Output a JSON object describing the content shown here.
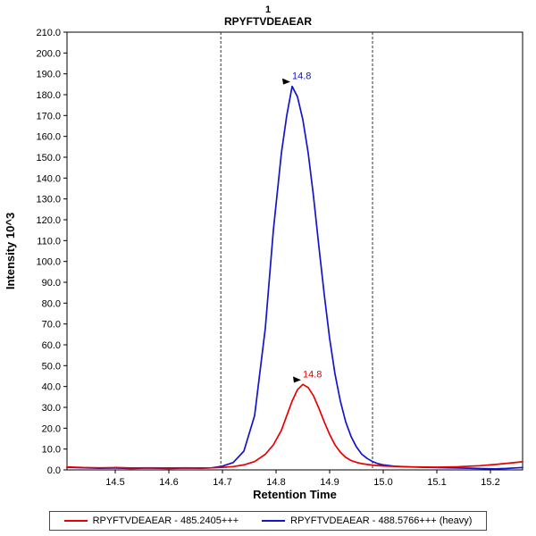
{
  "header": {
    "title": "1",
    "subtitle": "RPYFTVDEAEAR"
  },
  "chart_data": {
    "type": "line",
    "title": "1",
    "subtitle": "RPYFTVDEAEAR",
    "xlabel": "Retention Time",
    "ylabel": "Intensity 10^3",
    "xlim": [
      14.41,
      15.26
    ],
    "ylim": [
      0,
      210
    ],
    "xticks": [
      14.5,
      14.6,
      14.7,
      14.8,
      14.9,
      15.0,
      15.1,
      15.2
    ],
    "ytick_step": 10,
    "grid": false,
    "legend_position": "bottom",
    "boundaries": [
      14.697,
      14.98
    ],
    "series": [
      {
        "name": "RPYFTVDEAEAR - 485.2405+++",
        "color": "#e60000",
        "peak_annotation": {
          "label": "14.8",
          "x": 14.85,
          "y": 41
        },
        "points": [
          [
            14.41,
            1.4
          ],
          [
            14.44,
            1.1
          ],
          [
            14.47,
            1.0
          ],
          [
            14.5,
            1.1
          ],
          [
            14.53,
            0.9
          ],
          [
            14.56,
            1.0
          ],
          [
            14.6,
            0.9
          ],
          [
            14.63,
            1.0
          ],
          [
            14.66,
            0.9
          ],
          [
            14.68,
            1.0
          ],
          [
            14.7,
            1.2
          ],
          [
            14.72,
            1.6
          ],
          [
            14.74,
            2.4
          ],
          [
            14.76,
            4.0
          ],
          [
            14.78,
            7.5
          ],
          [
            14.795,
            12
          ],
          [
            14.81,
            19
          ],
          [
            14.82,
            26
          ],
          [
            14.83,
            33
          ],
          [
            14.84,
            38.5
          ],
          [
            14.85,
            41
          ],
          [
            14.86,
            39.5
          ],
          [
            14.87,
            35.5
          ],
          [
            14.88,
            29.5
          ],
          [
            14.89,
            23
          ],
          [
            14.9,
            17
          ],
          [
            14.91,
            12
          ],
          [
            14.92,
            8.5
          ],
          [
            14.93,
            6.0
          ],
          [
            14.94,
            4.5
          ],
          [
            14.95,
            3.6
          ],
          [
            14.96,
            3.0
          ],
          [
            14.97,
            2.6
          ],
          [
            14.98,
            2.3
          ],
          [
            15.0,
            1.9
          ],
          [
            15.03,
            1.6
          ],
          [
            15.06,
            1.4
          ],
          [
            15.1,
            1.3
          ],
          [
            15.14,
            1.5
          ],
          [
            15.18,
            2.0
          ],
          [
            15.21,
            2.6
          ],
          [
            15.24,
            3.4
          ],
          [
            15.26,
            3.9
          ]
        ]
      },
      {
        "name": "RPYFTVDEAEAR - 488.5766+++ (heavy)",
        "color": "#1414cc",
        "peak_annotation": {
          "label": "14.8",
          "x": 14.83,
          "y": 184
        },
        "points": [
          [
            14.41,
            1.2
          ],
          [
            14.44,
            1.0
          ],
          [
            14.47,
            0.8
          ],
          [
            14.5,
            0.9
          ],
          [
            14.53,
            0.7
          ],
          [
            14.56,
            0.9
          ],
          [
            14.6,
            0.7
          ],
          [
            14.63,
            0.9
          ],
          [
            14.66,
            0.8
          ],
          [
            14.68,
            1.0
          ],
          [
            14.7,
            1.8
          ],
          [
            14.72,
            3.5
          ],
          [
            14.74,
            9
          ],
          [
            14.76,
            26
          ],
          [
            14.78,
            68
          ],
          [
            14.795,
            115
          ],
          [
            14.81,
            152
          ],
          [
            14.82,
            170
          ],
          [
            14.83,
            184
          ],
          [
            14.84,
            179
          ],
          [
            14.85,
            168
          ],
          [
            14.86,
            152
          ],
          [
            14.87,
            131
          ],
          [
            14.88,
            107
          ],
          [
            14.89,
            84
          ],
          [
            14.9,
            63
          ],
          [
            14.91,
            46
          ],
          [
            14.92,
            33
          ],
          [
            14.93,
            23
          ],
          [
            14.94,
            16
          ],
          [
            14.95,
            11
          ],
          [
            14.96,
            7.5
          ],
          [
            14.97,
            5.5
          ],
          [
            14.98,
            4.0
          ],
          [
            14.99,
            3.0
          ],
          [
            15.0,
            2.4
          ],
          [
            15.02,
            1.8
          ],
          [
            15.05,
            1.4
          ],
          [
            15.08,
            1.2
          ],
          [
            15.12,
            1.0
          ],
          [
            15.16,
            0.8
          ],
          [
            15.19,
            0.6
          ],
          [
            15.21,
            0.5
          ],
          [
            15.23,
            0.7
          ],
          [
            15.25,
            1.0
          ],
          [
            15.26,
            1.1
          ]
        ]
      }
    ]
  },
  "legend": {
    "items": [
      {
        "label": "RPYFTVDEAEAR - 485.2405+++",
        "color": "#e60000"
      },
      {
        "label": "RPYFTVDEAEAR - 488.5766+++ (heavy)",
        "color": "#1414cc"
      }
    ]
  }
}
